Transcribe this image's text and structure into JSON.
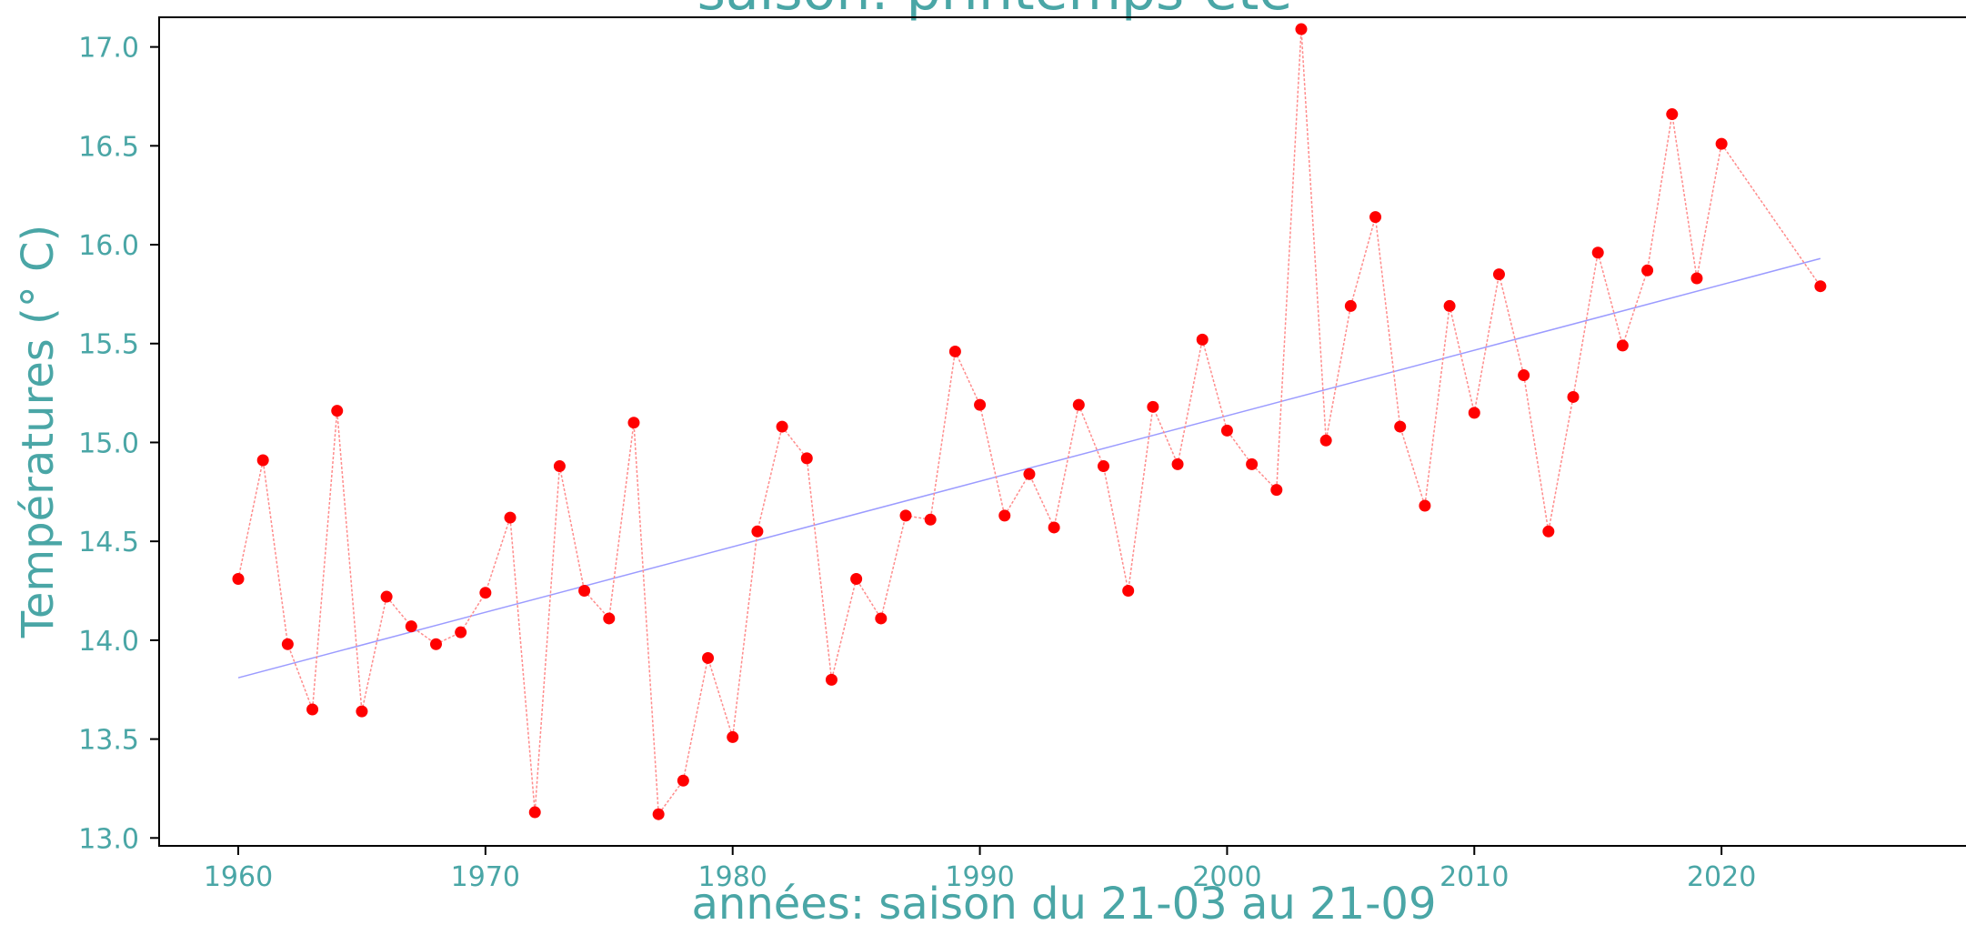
{
  "chart_data": {
    "type": "line",
    "title": "saison: printemps-été",
    "xlabel": "années: saison du 21-03 au 21-09",
    "ylabel": "Températures (° C)",
    "xlim": [
      1956.8,
      2030
    ],
    "ylim": [
      12.96,
      17.15
    ],
    "xticks": [
      1960,
      1970,
      1980,
      1990,
      2000,
      2010,
      2020
    ],
    "yticks": [
      13.0,
      13.5,
      14.0,
      14.5,
      15.0,
      15.5,
      16.0,
      16.5,
      17.0
    ],
    "xtick_labels": [
      "1960",
      "1970",
      "1980",
      "1990",
      "2000",
      "2010",
      "2020"
    ],
    "ytick_labels": [
      "13.0",
      "13.5",
      "14.0",
      "14.5",
      "15.0",
      "15.5",
      "16.0",
      "16.5",
      "17.0"
    ],
    "grid": false,
    "series": [
      {
        "style": "dotted line with circle markers",
        "x": [
          1960,
          1961,
          1962,
          1963,
          1964,
          1965,
          1966,
          1967,
          1968,
          1969,
          1970,
          1971,
          1972,
          1973,
          1974,
          1975,
          1976,
          1977,
          1978,
          1979,
          1980,
          1981,
          1982,
          1983,
          1984,
          1985,
          1986,
          1987,
          1988,
          1989,
          1990,
          1991,
          1992,
          1993,
          1994,
          1995,
          1996,
          1997,
          1998,
          1999,
          2000,
          2001,
          2002,
          2003,
          2004,
          2005,
          2006,
          2007,
          2008,
          2009,
          2010,
          2011,
          2012,
          2013,
          2014,
          2015,
          2016,
          2017,
          2018,
          2019,
          2020,
          2024
        ],
        "y": [
          14.31,
          14.91,
          13.98,
          13.65,
          15.16,
          13.64,
          14.22,
          14.07,
          13.98,
          14.04,
          14.24,
          14.62,
          13.13,
          14.88,
          14.25,
          14.11,
          15.1,
          13.12,
          13.29,
          13.91,
          13.51,
          14.55,
          15.08,
          14.92,
          13.8,
          14.31,
          14.11,
          14.63,
          14.61,
          15.46,
          15.19,
          14.63,
          14.84,
          14.57,
          15.19,
          14.88,
          14.25,
          15.18,
          14.89,
          15.52,
          15.06,
          14.89,
          14.76,
          17.09,
          15.01,
          15.69,
          16.14,
          15.08,
          14.68,
          15.69,
          15.15,
          15.85,
          15.34,
          14.55,
          15.23,
          15.96,
          15.49,
          15.87,
          16.66,
          15.83,
          16.51,
          15.79
        ]
      },
      {
        "style": "linear trend",
        "x": [
          1960,
          2024
        ],
        "y": [
          13.81,
          15.93
        ]
      }
    ],
    "colors": {
      "text": "#4aa6a6",
      "data_line": "#ff8c8c",
      "data_marker": "#ff0000",
      "trend_line": "#9b9bff",
      "axes": "#000000"
    }
  }
}
